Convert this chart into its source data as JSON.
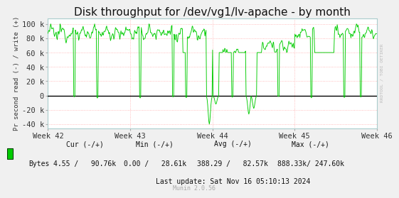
{
  "title": "Disk throughput for /dev/vg1/lv-apache - by month",
  "ylabel": "Pr second read (-) / write (+)",
  "background_color": "#f0f0f0",
  "plot_bg_color": "#ffffff",
  "grid_color": "#ffaaaa",
  "line_color": "#00cc00",
  "zero_line_color": "#000000",
  "ylim": [
    -46000,
    108000
  ],
  "yticks": [
    -40000,
    -20000,
    0,
    20000,
    40000,
    60000,
    80000,
    100000
  ],
  "ytick_labels": [
    "-40 k",
    "-20 k",
    "0",
    "20 k",
    "40 k",
    "60 k",
    "80 k",
    "100 k"
  ],
  "xtick_labels": [
    "Week 42",
    "Week 43",
    "Week 44",
    "Week 45",
    "Week 46"
  ],
  "title_fontsize": 11,
  "tick_fontsize": 7.5,
  "legend_text": "Bytes",
  "legend_color": "#00cc00",
  "last_update": "Last update: Sat Nov 16 05:10:13 2024",
  "munin_version": "Munin 2.0.56",
  "rrdtool_text": "RRDTOOL / TOBI OETIKER",
  "n_points": 600
}
